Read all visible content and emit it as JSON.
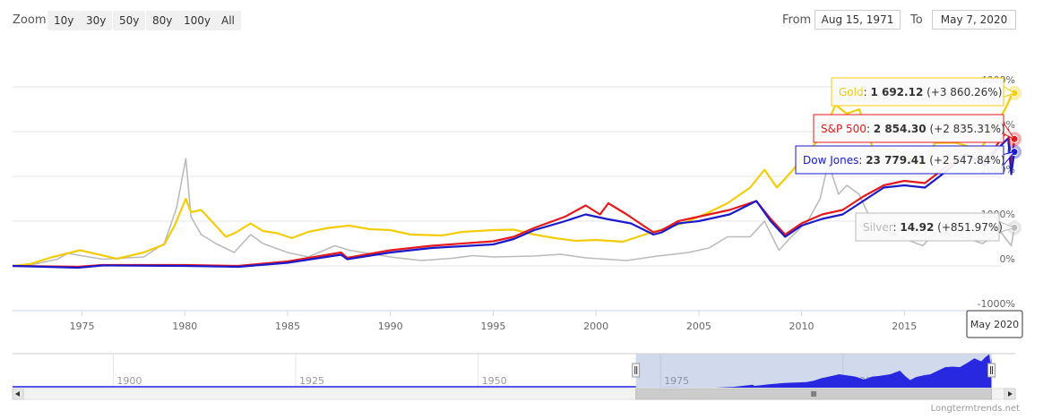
{
  "toolbar": {
    "zoom_label": "Zoom",
    "zoom_buttons": [
      "10y",
      "30y",
      "50y",
      "80y",
      "100y",
      "All"
    ],
    "from_label": "From",
    "from_value": "Aug 15, 1971",
    "to_label": "To",
    "to_value": "May 7, 2020"
  },
  "chart_data": {
    "type": "line",
    "x_ticks": [
      "1975",
      "1980",
      "1985",
      "1990",
      "1995",
      "2000",
      "2005",
      "2010",
      "2015"
    ],
    "y_ticks": [
      "4000%",
      "3000%",
      "2000%",
      "1000%",
      "0%",
      "-1000%"
    ],
    "ylim": [
      -1000,
      4000
    ],
    "xlim": [
      1971.62,
      2020.35
    ],
    "grid": true,
    "crosshair_label": "May 2020",
    "series": [
      {
        "name": "Gold",
        "color": "#f5cc0a",
        "value_text": "1 692.12",
        "change_text": "(+3 860.26%)",
        "points": [
          [
            1971.62,
            0
          ],
          [
            1972.5,
            45
          ],
          [
            1973.5,
            190
          ],
          [
            1974.9,
            350
          ],
          [
            1976.7,
            160
          ],
          [
            1978.0,
            300
          ],
          [
            1979.0,
            480
          ],
          [
            1979.5,
            900
          ],
          [
            1980.05,
            1500
          ],
          [
            1980.3,
            1200
          ],
          [
            1980.8,
            1250
          ],
          [
            1981.5,
            900
          ],
          [
            1982.0,
            650
          ],
          [
            1982.5,
            750
          ],
          [
            1983.2,
            950
          ],
          [
            1983.8,
            780
          ],
          [
            1984.5,
            730
          ],
          [
            1985.2,
            620
          ],
          [
            1986.0,
            760
          ],
          [
            1987.0,
            850
          ],
          [
            1988.0,
            900
          ],
          [
            1989.0,
            820
          ],
          [
            1990.0,
            800
          ],
          [
            1991.0,
            700
          ],
          [
            1992.5,
            680
          ],
          [
            1993.5,
            760
          ],
          [
            1995.0,
            800
          ],
          [
            1996.0,
            810
          ],
          [
            1997.0,
            700
          ],
          [
            1998.0,
            620
          ],
          [
            1999.0,
            560
          ],
          [
            2000.0,
            580
          ],
          [
            2001.3,
            540
          ],
          [
            2002.5,
            720
          ],
          [
            2003.5,
            850
          ],
          [
            2004.5,
            1000
          ],
          [
            2005.5,
            1200
          ],
          [
            2006.4,
            1400
          ],
          [
            2007.5,
            1750
          ],
          [
            2008.2,
            2150
          ],
          [
            2008.8,
            1750
          ],
          [
            2009.5,
            2100
          ],
          [
            2010.3,
            2550
          ],
          [
            2011.0,
            2900
          ],
          [
            2011.65,
            3600
          ],
          [
            2012.2,
            3400
          ],
          [
            2012.8,
            3500
          ],
          [
            2013.5,
            2600
          ],
          [
            2014.5,
            2600
          ],
          [
            2015.9,
            2200
          ],
          [
            2016.5,
            2750
          ],
          [
            2017.5,
            2750
          ],
          [
            2018.7,
            2600
          ],
          [
            2019.5,
            3200
          ],
          [
            2019.9,
            3500
          ],
          [
            2020.2,
            3800
          ],
          [
            2020.35,
            3860
          ]
        ]
      },
      {
        "name": "S&P 500",
        "color": "#e41a1c",
        "value_text": "2 854.30",
        "change_text": "(+2 835.31%)",
        "points": [
          [
            1971.62,
            0
          ],
          [
            1974.8,
            -20
          ],
          [
            1976.0,
            20
          ],
          [
            1980.0,
            20
          ],
          [
            1982.6,
            0
          ],
          [
            1985.0,
            100
          ],
          [
            1987.6,
            300
          ],
          [
            1987.9,
            180
          ],
          [
            1990.0,
            350
          ],
          [
            1992.0,
            450
          ],
          [
            1995.0,
            550
          ],
          [
            1996.0,
            650
          ],
          [
            1997.0,
            850
          ],
          [
            1998.5,
            1100
          ],
          [
            1999.5,
            1350
          ],
          [
            2000.2,
            1150
          ],
          [
            2000.6,
            1400
          ],
          [
            2001.5,
            1150
          ],
          [
            2002.3,
            900
          ],
          [
            2002.8,
            750
          ],
          [
            2003.2,
            800
          ],
          [
            2004.0,
            1000
          ],
          [
            2005.0,
            1100
          ],
          [
            2006.5,
            1250
          ],
          [
            2007.8,
            1450
          ],
          [
            2008.5,
            1050
          ],
          [
            2009.2,
            700
          ],
          [
            2010.0,
            950
          ],
          [
            2011.0,
            1150
          ],
          [
            2012.0,
            1250
          ],
          [
            2013.0,
            1550
          ],
          [
            2014.0,
            1800
          ],
          [
            2015.0,
            1900
          ],
          [
            2016.0,
            1850
          ],
          [
            2017.0,
            2200
          ],
          [
            2018.0,
            2500
          ],
          [
            2018.95,
            2250
          ],
          [
            2019.5,
            2700
          ],
          [
            2020.05,
            3050
          ],
          [
            2020.2,
            2200
          ],
          [
            2020.35,
            2835
          ]
        ]
      },
      {
        "name": "Dow Jones",
        "color": "#1a1acc",
        "value_text": "23 779.41",
        "change_text": "(+2 547.84%)",
        "points": [
          [
            1971.62,
            0
          ],
          [
            1974.8,
            -40
          ],
          [
            1976.0,
            10
          ],
          [
            1980.0,
            0
          ],
          [
            1982.6,
            -20
          ],
          [
            1985.0,
            70
          ],
          [
            1987.6,
            250
          ],
          [
            1987.9,
            150
          ],
          [
            1990.0,
            300
          ],
          [
            1992.0,
            400
          ],
          [
            1995.0,
            480
          ],
          [
            1996.0,
            600
          ],
          [
            1997.0,
            800
          ],
          [
            1998.5,
            1000
          ],
          [
            1999.5,
            1150
          ],
          [
            2000.5,
            1050
          ],
          [
            2001.7,
            950
          ],
          [
            2002.8,
            700
          ],
          [
            2003.2,
            750
          ],
          [
            2004.0,
            950
          ],
          [
            2005.0,
            1000
          ],
          [
            2006.5,
            1150
          ],
          [
            2007.8,
            1450
          ],
          [
            2008.5,
            1000
          ],
          [
            2009.2,
            650
          ],
          [
            2010.0,
            900
          ],
          [
            2011.0,
            1050
          ],
          [
            2012.0,
            1150
          ],
          [
            2013.0,
            1450
          ],
          [
            2014.0,
            1750
          ],
          [
            2015.0,
            1800
          ],
          [
            2016.0,
            1750
          ],
          [
            2017.0,
            2100
          ],
          [
            2018.0,
            2500
          ],
          [
            2018.95,
            2250
          ],
          [
            2019.5,
            2600
          ],
          [
            2020.05,
            2850
          ],
          [
            2020.2,
            2050
          ],
          [
            2020.35,
            2548
          ]
        ]
      },
      {
        "name": "Silver",
        "color": "#bbbbbb",
        "value_text": "14.92",
        "change_text": "(+851.97%)",
        "points": [
          [
            1971.62,
            0
          ],
          [
            1972.5,
            20
          ],
          [
            1973.8,
            150
          ],
          [
            1974.3,
            280
          ],
          [
            1976.0,
            150
          ],
          [
            1978.0,
            200
          ],
          [
            1979.0,
            500
          ],
          [
            1979.6,
            1300
          ],
          [
            1980.05,
            2400
          ],
          [
            1980.3,
            1100
          ],
          [
            1980.8,
            700
          ],
          [
            1981.5,
            500
          ],
          [
            1982.4,
            300
          ],
          [
            1983.2,
            700
          ],
          [
            1983.8,
            500
          ],
          [
            1985.0,
            300
          ],
          [
            1986.0,
            200
          ],
          [
            1987.3,
            450
          ],
          [
            1988.0,
            350
          ],
          [
            1990.0,
            200
          ],
          [
            1991.5,
            120
          ],
          [
            1993.0,
            170
          ],
          [
            1994.0,
            230
          ],
          [
            1995.0,
            200
          ],
          [
            1997.0,
            220
          ],
          [
            1998.3,
            260
          ],
          [
            1999.5,
            180
          ],
          [
            2001.5,
            120
          ],
          [
            2003.0,
            220
          ],
          [
            2004.5,
            300
          ],
          [
            2005.5,
            400
          ],
          [
            2006.4,
            650
          ],
          [
            2007.5,
            650
          ],
          [
            2008.2,
            1000
          ],
          [
            2008.9,
            350
          ],
          [
            2009.5,
            650
          ],
          [
            2010.3,
            1000
          ],
          [
            2010.9,
            1500
          ],
          [
            2011.3,
            2300
          ],
          [
            2011.8,
            1600
          ],
          [
            2012.2,
            1800
          ],
          [
            2012.8,
            1600
          ],
          [
            2013.5,
            900
          ],
          [
            2014.5,
            700
          ],
          [
            2015.9,
            450
          ],
          [
            2016.5,
            750
          ],
          [
            2017.5,
            700
          ],
          [
            2018.8,
            500
          ],
          [
            2019.7,
            750
          ],
          [
            2020.2,
            450
          ],
          [
            2020.35,
            852
          ]
        ]
      }
    ]
  },
  "navigator": {
    "x_ticks": [
      "1900",
      "1925",
      "1950",
      "1975",
      "2000"
    ],
    "xlim": [
      1886.2,
      2023.6
    ],
    "window": [
      1971.62,
      2020.35
    ]
  },
  "credit": "Longtermtrends.net"
}
